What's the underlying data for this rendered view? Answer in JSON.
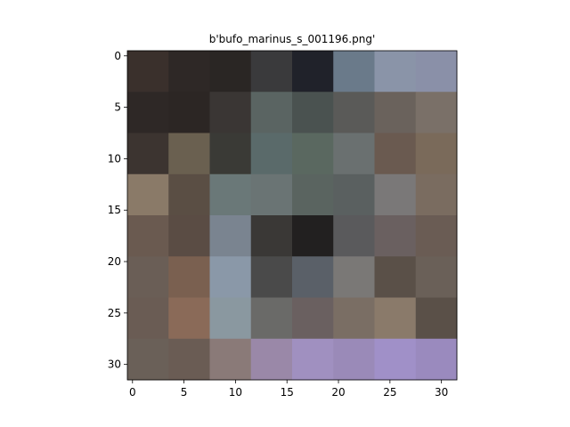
{
  "chart_data": {
    "type": "image",
    "title": "b'bufo_marinus_s_001196.png'",
    "xlim": [
      -0.5,
      31.5
    ],
    "ylim": [
      31.5,
      -0.5
    ],
    "xticks": [
      0,
      5,
      10,
      15,
      20,
      25,
      30
    ],
    "yticks": [
      0,
      5,
      10,
      15,
      20,
      25,
      30
    ]
  }
}
